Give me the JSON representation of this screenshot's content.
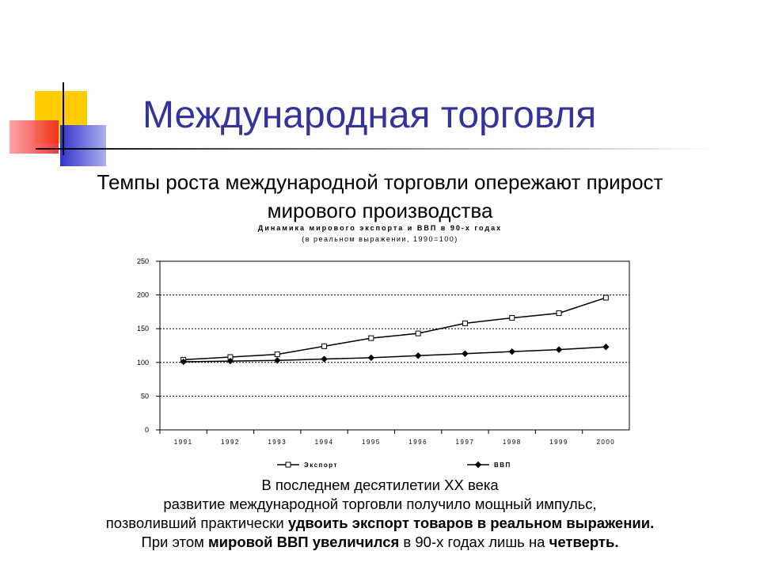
{
  "slide": {
    "title": "Международная торговля",
    "subtitle_lines": [
      "Темпы роста международной торговли опережают прирост",
      "мирового производства"
    ],
    "text_lines": [
      [
        {
          "text": "В последнем десятилетии XX века",
          "bold": false
        }
      ],
      [
        {
          "text": "развитие международной торговли получило мощный импульс,",
          "bold": false
        }
      ],
      [
        {
          "text": "позволивший практически ",
          "bold": false
        },
        {
          "text": "удвоить экспорт товаров в реальном выражении.",
          "bold": true
        }
      ],
      [
        {
          "text": "При этом ",
          "bold": false
        },
        {
          "text": "мировой ВВП увеличился",
          "bold": true
        },
        {
          "text": " в 90-х годах лишь на ",
          "bold": false
        },
        {
          "text": "четверть.",
          "bold": true
        }
      ]
    ]
  },
  "chart_data": {
    "type": "line",
    "title": "Динамика мирового экспорта и ВВП в 90-х годах",
    "subtitle": "(в реальном выражении, 1990=100)",
    "categories": [
      "1991",
      "1992",
      "1993",
      "1994",
      "1995",
      "1996",
      "1997",
      "1998",
      "1999",
      "2000"
    ],
    "series": [
      {
        "name": "Экспорт",
        "color": "#000000",
        "marker": "square",
        "values": [
          104,
          108,
          112,
          124,
          136,
          143,
          158,
          166,
          173,
          196
        ]
      },
      {
        "name": "ВВП",
        "color": "#000000",
        "marker": "diamond",
        "values": [
          101,
          102,
          103,
          105,
          107,
          110,
          113,
          116,
          119,
          123
        ]
      }
    ],
    "ylim": [
      0,
      250
    ],
    "yticks": [
      0,
      50,
      100,
      150,
      200,
      250
    ],
    "grid": true,
    "legend": "bottom"
  }
}
